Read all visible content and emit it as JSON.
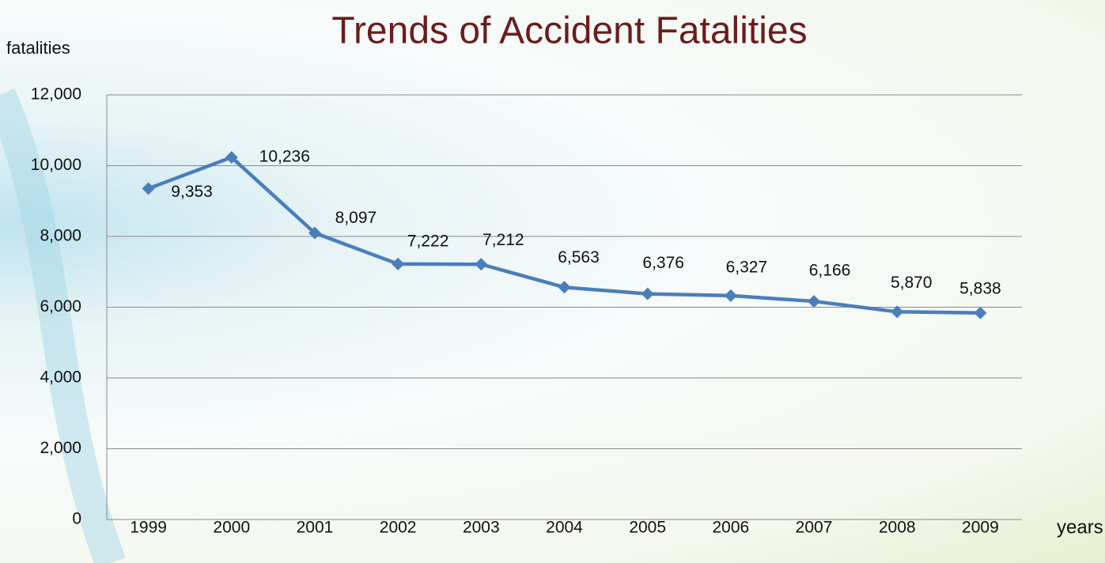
{
  "chart_data": {
    "type": "line",
    "title": "Trends of Accident Fatalities",
    "y_label": "fatalities",
    "x_label": "years",
    "categories": [
      "1999",
      "2000",
      "2001",
      "2002",
      "2003",
      "2004",
      "2005",
      "2006",
      "2007",
      "2008",
      "2009"
    ],
    "series": [
      {
        "name": "fatalities",
        "color": "#4a7ebb",
        "values": [
          9353,
          10236,
          8097,
          7222,
          7212,
          6563,
          6376,
          6327,
          6166,
          5870,
          5838
        ],
        "value_labels": [
          "9,353",
          "10,236",
          "8,097",
          "7,222",
          "7,212",
          "6,563",
          "6,376",
          "6,327",
          "6,166",
          "5,870",
          "5,838"
        ]
      }
    ],
    "ylim": [
      0,
      12000
    ],
    "yticks": [
      0,
      {
        "value": 2000,
        "label": "2,000"
      },
      {
        "value": 4000,
        "label": "4,000"
      },
      {
        "value": 6000,
        "label": "6,000"
      },
      {
        "value": 8000,
        "label": "8,000"
      },
      {
        "value": 10000,
        "label": "10,000"
      },
      {
        "value": 12000,
        "label": "12,000"
      }
    ],
    "grid": true,
    "legend": false
  }
}
